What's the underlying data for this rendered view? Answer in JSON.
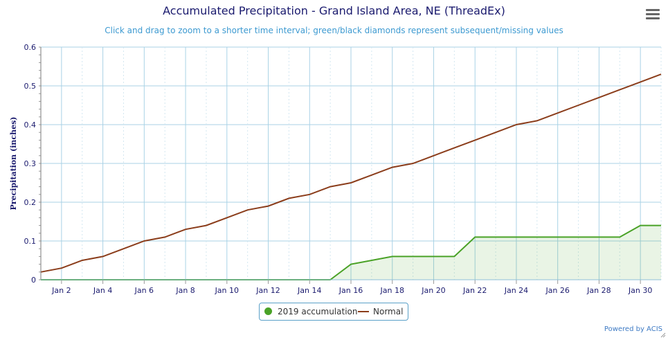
{
  "title": "Accumulated Precipitation - Grand Island Area, NE (ThreadEx)",
  "subtitle": "Click and drag to zoom to a shorter time interval; green/black diamonds represent subsequent/missing values",
  "credit": "Powered by ACIS",
  "colors": {
    "accumulation": "#4aa227",
    "normal": "#8b3d1b",
    "grid": "#a9d2e6",
    "axis_text": "#1a1a6e"
  },
  "chart_data": {
    "type": "line",
    "ylabel": "Precipitation (inches)",
    "xlabel": "",
    "ylim": [
      0,
      0.6
    ],
    "xlim": [
      1,
      31
    ],
    "y_ticks": [
      "0",
      "0.1",
      "0.2",
      "0.3",
      "0.4",
      "0.5",
      "0.6"
    ],
    "x_ticks": [
      {
        "day": 2,
        "label": "Jan 2"
      },
      {
        "day": 4,
        "label": "Jan 4"
      },
      {
        "day": 6,
        "label": "Jan 6"
      },
      {
        "day": 8,
        "label": "Jan 8"
      },
      {
        "day": 10,
        "label": "Jan 10"
      },
      {
        "day": 12,
        "label": "Jan 12"
      },
      {
        "day": 14,
        "label": "Jan 14"
      },
      {
        "day": 16,
        "label": "Jan 16"
      },
      {
        "day": 18,
        "label": "Jan 18"
      },
      {
        "day": 20,
        "label": "Jan 20"
      },
      {
        "day": 22,
        "label": "Jan 22"
      },
      {
        "day": 24,
        "label": "Jan 24"
      },
      {
        "day": 26,
        "label": "Jan 26"
      },
      {
        "day": 28,
        "label": "Jan 28"
      },
      {
        "day": 30,
        "label": "Jan 30"
      }
    ],
    "grid": true,
    "legend_position": "bottom-center",
    "series": [
      {
        "name": "2019 accumulation",
        "style": "area",
        "x": [
          1,
          2,
          3,
          4,
          5,
          6,
          7,
          8,
          9,
          10,
          11,
          12,
          13,
          14,
          15,
          16,
          17,
          18,
          19,
          20,
          21,
          22,
          23,
          24,
          25,
          26,
          27,
          28,
          29,
          30,
          31
        ],
        "y": [
          0,
          0,
          0,
          0,
          0,
          0,
          0,
          0,
          0,
          0,
          0,
          0,
          0,
          0,
          0,
          0.04,
          0.05,
          0.06,
          0.06,
          0.06,
          0.06,
          0.11,
          0.11,
          0.11,
          0.11,
          0.11,
          0.11,
          0.11,
          0.11,
          0.14,
          0.14
        ]
      },
      {
        "name": "Normal",
        "style": "line",
        "x": [
          1,
          2,
          3,
          4,
          5,
          6,
          7,
          8,
          9,
          10,
          11,
          12,
          13,
          14,
          15,
          16,
          17,
          18,
          19,
          20,
          21,
          22,
          23,
          24,
          25,
          26,
          27,
          28,
          29,
          30,
          31
        ],
        "y": [
          0.02,
          0.03,
          0.05,
          0.06,
          0.08,
          0.1,
          0.11,
          0.13,
          0.14,
          0.16,
          0.18,
          0.19,
          0.21,
          0.22,
          0.24,
          0.25,
          0.27,
          0.29,
          0.3,
          0.32,
          0.34,
          0.36,
          0.38,
          0.4,
          0.41,
          0.43,
          0.45,
          0.47,
          0.49,
          0.51,
          0.53
        ]
      }
    ]
  }
}
